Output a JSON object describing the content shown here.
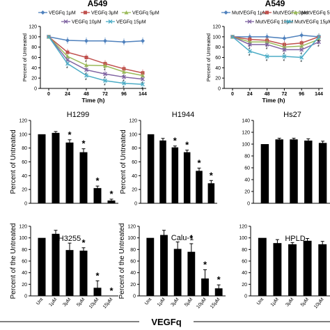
{
  "footer_label": "VEGFq",
  "colors": {
    "vegfq_1uM": "#4f81bd",
    "vegfq_3uM": "#c0504d",
    "vegfq_5uM": "#9bbb59",
    "vegfq_10uM": "#8064a2",
    "vegfq_15uM": "#4bacc6",
    "bar": "#000000"
  },
  "chart_data": [
    {
      "id": "a549-vegfq",
      "type": "line",
      "title": "A549",
      "xlabel": "Time (h)",
      "ylabel": "Percent of Untreated",
      "x": [
        0,
        24,
        48,
        72,
        96,
        144
      ],
      "ylim": [
        0,
        120
      ],
      "yticks": [
        0,
        20,
        40,
        60,
        80,
        100,
        120
      ],
      "legend_position": "top",
      "series": [
        {
          "name": "VEGFq 1μM",
          "values": [
            100,
            93,
            92,
            92,
            90,
            92
          ]
        },
        {
          "name": "VEGFq 3μM",
          "values": [
            100,
            70,
            60,
            48,
            38,
            30
          ]
        },
        {
          "name": "VEGFq 5μM",
          "values": [
            100,
            62,
            45,
            44,
            32,
            25
          ]
        },
        {
          "name": "VEGFq 10μM",
          "values": [
            100,
            55,
            36,
            28,
            22,
            18
          ]
        },
        {
          "name": "VEGFq 15μM",
          "values": [
            100,
            48,
            25,
            15,
            10,
            8
          ]
        }
      ],
      "annotations": [
        "*"
      ]
    },
    {
      "id": "a549-mutvegfq",
      "type": "line",
      "title": "A549",
      "xlabel": "Time (h)",
      "ylabel": "Percent of Untreated",
      "x": [
        0,
        24,
        48,
        72,
        96,
        144
      ],
      "ylim": [
        0,
        120
      ],
      "yticks": [
        0,
        20,
        40,
        60,
        80,
        100,
        120
      ],
      "legend_position": "top",
      "series": [
        {
          "name": "MutVEGFq 1μM",
          "values": [
            100,
            100,
            100,
            97,
            103,
            100
          ]
        },
        {
          "name": "MutVEGFq 3μM",
          "values": [
            100,
            95,
            93,
            85,
            88,
            100
          ]
        },
        {
          "name": "MutVEGFq 5μM",
          "values": [
            100,
            90,
            90,
            80,
            82,
            95
          ]
        },
        {
          "name": "MutVEGFq 10μM",
          "values": [
            100,
            85,
            85,
            75,
            75,
            90
          ]
        },
        {
          "name": "MutVEGFq 15μM",
          "values": [
            100,
            72,
            62,
            62,
            60,
            100
          ]
        }
      ],
      "annotations": [
        "*"
      ]
    },
    {
      "id": "h1299",
      "type": "bar",
      "title": "H1299",
      "ylabel": "Percent of Untreated",
      "ylim": [
        0,
        120
      ],
      "yticks": [
        0,
        20,
        40,
        60,
        80,
        100,
        120
      ],
      "values": [
        100,
        102,
        88,
        74,
        22,
        4
      ],
      "errors": [
        0,
        2,
        4,
        5,
        3,
        2
      ],
      "stars": [
        false,
        false,
        true,
        true,
        true,
        true
      ]
    },
    {
      "id": "h1944",
      "type": "bar",
      "title": "H1944",
      "ylabel": "Percent of Untreated",
      "ylim": [
        0,
        120
      ],
      "yticks": [
        0,
        20,
        40,
        60,
        80,
        100,
        120
      ],
      "values": [
        100,
        91,
        81,
        74,
        47,
        29
      ],
      "errors": [
        0,
        3,
        2,
        3,
        4,
        4
      ],
      "stars": [
        false,
        false,
        true,
        true,
        true,
        true
      ]
    },
    {
      "id": "hs27",
      "type": "bar",
      "title": "Hs27",
      "ylabel": "",
      "ylim": [
        0,
        140
      ],
      "yticks": [
        0,
        20,
        40,
        60,
        80,
        100,
        120,
        140
      ],
      "values": [
        100,
        108,
        108,
        106,
        102
      ],
      "errors": [
        0,
        2,
        2,
        3,
        3
      ],
      "stars": [
        false,
        false,
        false,
        false,
        false
      ]
    },
    {
      "id": "h3255",
      "type": "bar",
      "title": "H3255",
      "ylabel": "Percent of the Untreated",
      "ylim": [
        0,
        120
      ],
      "yticks": [
        0,
        20,
        40,
        60,
        80,
        100,
        120
      ],
      "categories": [
        "Unt",
        "1μM",
        "3μM",
        "5μM",
        "10μM",
        "15μM"
      ],
      "values": [
        100,
        107,
        79,
        78,
        14,
        0
      ],
      "errors": [
        0,
        6,
        12,
        5,
        12,
        0
      ],
      "stars": [
        false,
        false,
        false,
        true,
        true,
        true
      ]
    },
    {
      "id": "calu1",
      "type": "bar",
      "title": "Calu-1",
      "ylabel": "Percent of the Untreated",
      "ylim": [
        0,
        120
      ],
      "yticks": [
        0,
        20,
        40,
        60,
        80,
        100,
        120
      ],
      "categories": [
        "Unt",
        "1μM",
        "3μM",
        "5μM",
        "10μM",
        "15μM"
      ],
      "values": [
        100,
        105,
        81,
        76,
        30,
        13
      ],
      "errors": [
        0,
        8,
        12,
        14,
        15,
        6
      ],
      "stars": [
        false,
        false,
        false,
        true,
        true,
        true
      ]
    },
    {
      "id": "hpld",
      "type": "bar",
      "title": "HPLD",
      "ylabel": "",
      "ylim": [
        0,
        120
      ],
      "yticks": [
        0,
        20,
        40,
        60,
        80,
        100,
        120
      ],
      "categories": [
        "Unt",
        "1μM",
        "3μM",
        "5μM",
        "10μM"
      ],
      "values": [
        100,
        91,
        89,
        95,
        89
      ],
      "errors": [
        0,
        6,
        3,
        4,
        5
      ],
      "stars": [
        false,
        false,
        false,
        false,
        false
      ]
    }
  ]
}
